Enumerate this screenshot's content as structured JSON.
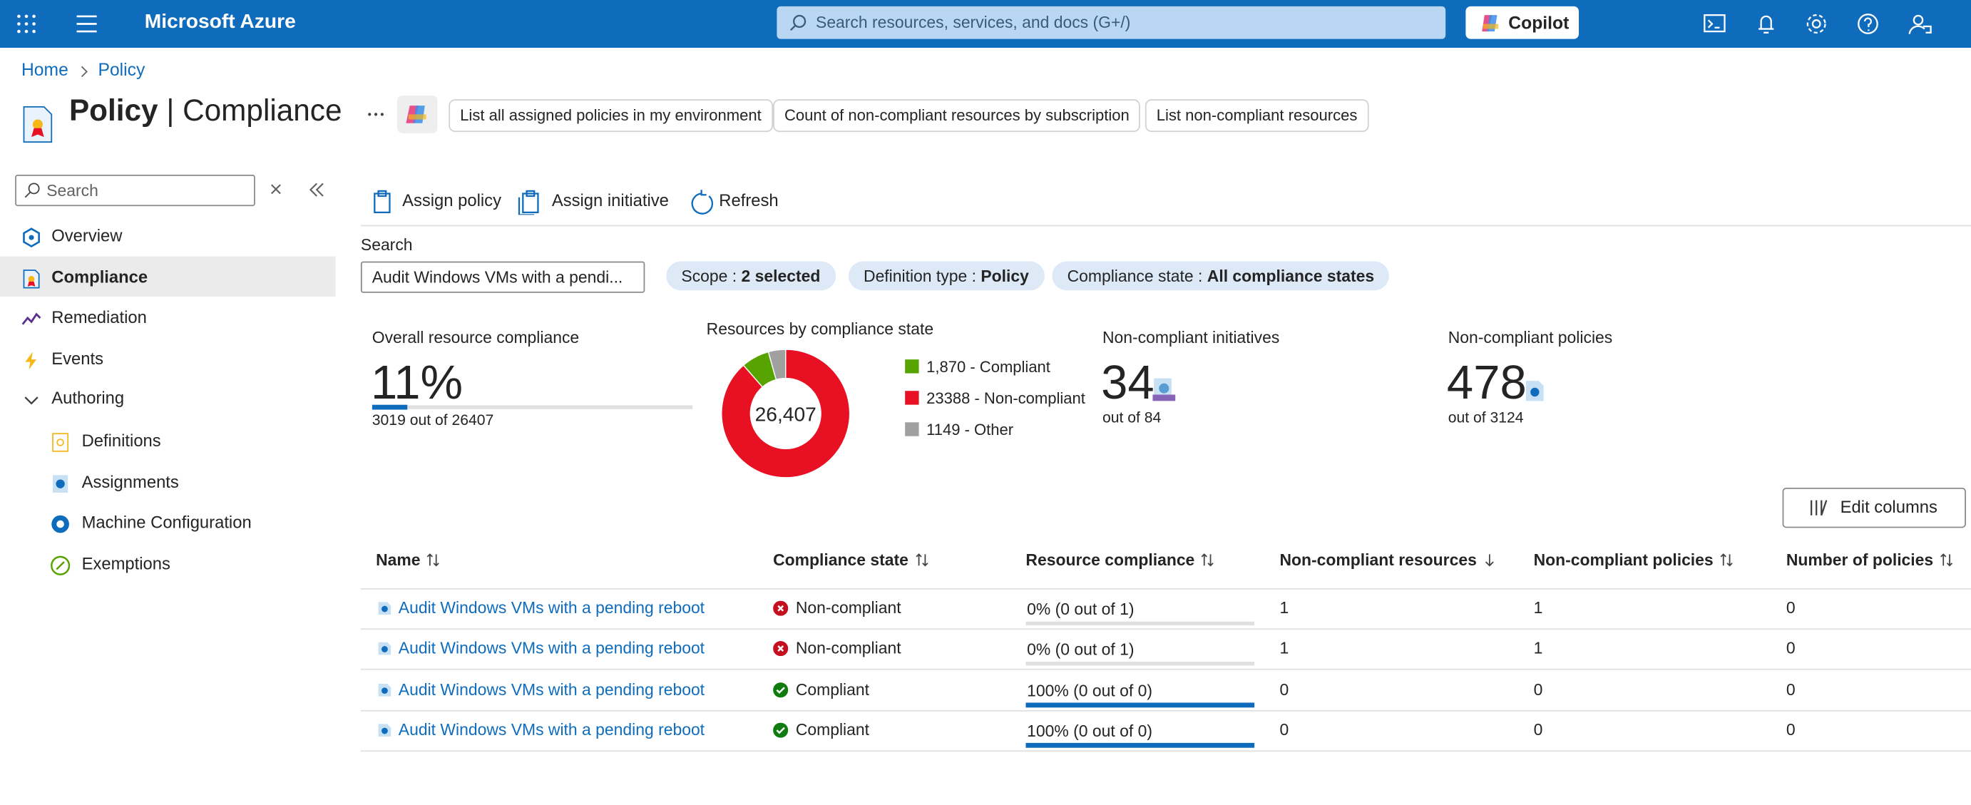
{
  "topbar": {
    "brand": "Microsoft Azure",
    "search_placeholder": "Search resources, services, and docs (G+/)",
    "copilot": "Copilot"
  },
  "breadcrumb": [
    "Home",
    "Policy"
  ],
  "header": {
    "title": "Policy",
    "separator": "|",
    "subtitle": "Compliance",
    "suggestions": [
      "List all assigned policies in my environment",
      "Count of non-compliant resources by subscription",
      "List non-compliant resources"
    ]
  },
  "sidebar": {
    "search_placeholder": "Search",
    "items": [
      "Overview",
      "Compliance",
      "Remediation",
      "Events",
      "Authoring"
    ],
    "authoring_items": [
      "Definitions",
      "Assignments",
      "Machine Configuration",
      "Exemptions"
    ]
  },
  "toolbar": [
    "Assign policy",
    "Assign initiative",
    "Refresh"
  ],
  "filters": {
    "search_label": "Search",
    "search_value": "Audit Windows VMs with a pendi...",
    "pills": [
      {
        "key": "Scope :",
        "value": "2 selected"
      },
      {
        "key": "Definition type :",
        "value": "Policy"
      },
      {
        "key": "Compliance state :",
        "value": "All compliance states"
      }
    ]
  },
  "stats": {
    "overall": {
      "title": "Overall resource compliance",
      "value_label": "11%",
      "percent": 11,
      "detail": "3019 out of 26407"
    },
    "donut": {
      "title": "Resources by compliance state",
      "total_label": "26,407",
      "segments": [
        {
          "value": 1870,
          "label": "1,870 - Compliant",
          "color": "#57a300"
        },
        {
          "value": 23388,
          "label": "23388 - Non-compliant",
          "color": "#e81123"
        },
        {
          "value": 1149,
          "label": "1149 - Other",
          "color": "#a0a0a0"
        }
      ]
    },
    "initiatives": {
      "title": "Non-compliant initiatives",
      "value": 34,
      "detail": "out of 84"
    },
    "policies": {
      "title": "Non-compliant policies",
      "value": 478,
      "detail": "out of 3124"
    }
  },
  "edit_columns": "Edit columns",
  "table": {
    "columns": [
      "Name",
      "Compliance state",
      "Resource compliance",
      "Non-compliant resources",
      "Non-compliant policies",
      "Number of policies"
    ],
    "rows": [
      {
        "name": "Audit Windows VMs with a pending reboot",
        "state": "Non-compliant",
        "compliance_label": "0% (0 out of 1)",
        "compliance_percent": 0,
        "noncompliant_resources": 1,
        "noncompliant_policies": 1,
        "policies": 0
      },
      {
        "name": "Audit Windows VMs with a pending reboot",
        "state": "Non-compliant",
        "compliance_label": "0% (0 out of 1)",
        "compliance_percent": 0,
        "noncompliant_resources": 1,
        "noncompliant_policies": 1,
        "policies": 0
      },
      {
        "name": "Audit Windows VMs with a pending reboot",
        "state": "Compliant",
        "compliance_label": "100% (0 out of 0)",
        "compliance_percent": 100,
        "noncompliant_resources": 0,
        "noncompliant_policies": 0,
        "policies": 0
      },
      {
        "name": "Audit Windows VMs with a pending reboot",
        "state": "Compliant",
        "compliance_label": "100% (0 out of 0)",
        "compliance_percent": 100,
        "noncompliant_resources": 0,
        "noncompliant_policies": 0,
        "policies": 0
      }
    ]
  }
}
